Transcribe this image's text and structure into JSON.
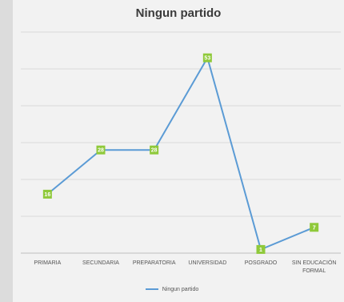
{
  "chart_data": {
    "type": "line",
    "title": "Ningun partido",
    "categories": [
      "PRIMARIA",
      "SECUNDARIA",
      "PREPARATORIA",
      "UNIVERSIDAD",
      "POSGRADO",
      "SIN EDUCACIÓN FORMAL"
    ],
    "series": [
      {
        "name": "Ningun partido",
        "values": [
          16,
          28,
          28,
          53,
          1,
          7
        ]
      }
    ],
    "ylim": [
      0,
      60
    ],
    "grid": true,
    "legend": "bottom",
    "colors": {
      "line": "#5b9bd5",
      "marker": "#8fc93a"
    }
  }
}
